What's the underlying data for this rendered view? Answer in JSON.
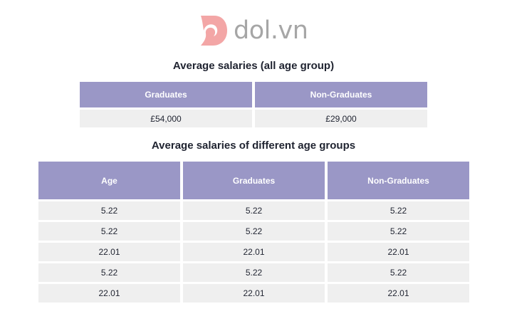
{
  "brand": {
    "name": "dol.vn",
    "accent": "#f3a6a6",
    "header_color": "#9a97c6",
    "cell_color": "#efefef"
  },
  "summary": {
    "title": "Average salaries (all age group)",
    "headers": [
      "Graduates",
      "Non-Graduates"
    ],
    "values": [
      "£54,000",
      "£29,000"
    ]
  },
  "by_age": {
    "title": "Average salaries of different age groups",
    "headers": [
      "Age",
      "Graduates",
      "Non-Graduates"
    ],
    "rows": [
      [
        "5.22",
        "5.22",
        "5.22"
      ],
      [
        "5.22",
        "5.22",
        "5.22"
      ],
      [
        "22.01",
        "22.01",
        "22.01"
      ],
      [
        "5.22",
        "5.22",
        "5.22"
      ],
      [
        "22.01",
        "22.01",
        "22.01"
      ]
    ]
  }
}
